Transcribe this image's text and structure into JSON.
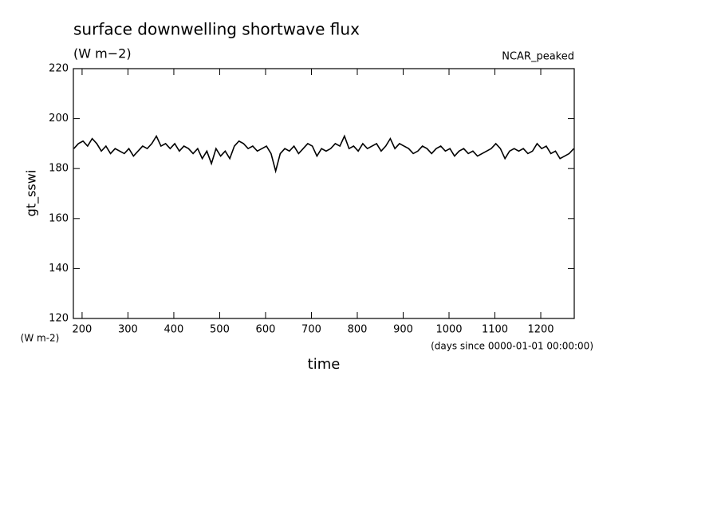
{
  "chart_data": {
    "type": "line",
    "title": "surface downwelling shortwave flux",
    "subtitle": "(W m−2)",
    "annotation": "NCAR_peaked",
    "y_label": "gt_sswi",
    "y_unit": "(W m-2)",
    "x_label": "time",
    "x_unit": "(days since 0000-01-01 00:00:00)",
    "x": [
      182,
      192,
      202,
      212,
      222,
      232,
      242,
      252,
      262,
      272,
      282,
      292,
      302,
      312,
      322,
      332,
      342,
      352,
      362,
      372,
      382,
      392,
      402,
      412,
      422,
      432,
      442,
      452,
      462,
      472,
      482,
      492,
      502,
      512,
      522,
      532,
      542,
      552,
      562,
      572,
      582,
      592,
      602,
      612,
      622,
      632,
      642,
      652,
      662,
      672,
      682,
      692,
      702,
      712,
      722,
      732,
      742,
      752,
      762,
      772,
      782,
      792,
      802,
      812,
      822,
      832,
      842,
      852,
      862,
      872,
      882,
      892,
      902,
      912,
      922,
      932,
      942,
      952,
      962,
      972,
      982,
      992,
      1002,
      1012,
      1022,
      1032,
      1042,
      1052,
      1062,
      1072,
      1082,
      1092,
      1102,
      1112,
      1122,
      1132,
      1142,
      1152,
      1162,
      1172,
      1182,
      1192,
      1202,
      1212,
      1222,
      1232,
      1242,
      1252,
      1262,
      1272
    ],
    "series": [
      {
        "color": "#000000",
        "values": [
          188,
          190,
          191,
          189,
          192,
          190,
          187,
          189,
          186,
          188,
          187,
          186,
          188,
          185,
          187,
          189,
          188,
          190,
          193,
          189,
          190,
          188,
          190,
          187,
          189,
          188,
          186,
          188,
          184,
          187,
          182,
          188,
          185,
          187,
          184,
          189,
          191,
          190,
          188,
          189,
          187,
          188,
          189,
          186,
          179,
          186,
          188,
          187,
          189,
          186,
          188,
          190,
          189,
          185,
          188,
          187,
          188,
          190,
          189,
          193,
          188,
          189,
          187,
          190,
          188,
          189,
          190,
          187,
          189,
          192,
          188,
          190,
          189,
          188,
          186,
          187,
          189,
          188,
          186,
          188,
          189,
          187,
          188,
          185,
          187,
          188,
          186,
          187,
          185,
          186,
          187,
          188,
          190,
          188,
          184,
          187,
          188,
          187,
          188,
          186,
          187,
          190,
          188,
          189,
          186,
          187,
          184,
          185,
          186,
          188
        ]
      }
    ],
    "xlim": [
      181,
      1273
    ],
    "ylim": [
      120,
      220
    ],
    "xticks": [
      200,
      300,
      400,
      500,
      600,
      700,
      800,
      900,
      1000,
      1100,
      1200
    ],
    "yticks": [
      120,
      140,
      160,
      180,
      200,
      220
    ]
  }
}
